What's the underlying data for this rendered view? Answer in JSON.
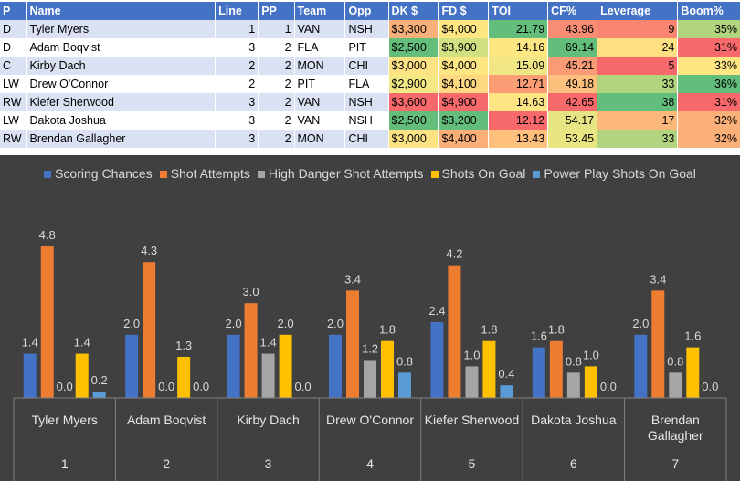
{
  "table": {
    "headers": [
      "P",
      "Name",
      "Line",
      "PP",
      "Team",
      "Opp",
      "DK $",
      "FD $",
      "TOI",
      "CF%",
      "Leverage",
      "Boom%"
    ],
    "rows": [
      {
        "pos": "D",
        "name": "Tyler Myers",
        "line": "1",
        "pp": "1",
        "team": "VAN",
        "opp": "NSH",
        "dk": "$3,300",
        "fd": "$4,000",
        "toi": "21.79",
        "cf": "43.96",
        "lev": "9",
        "boom": "35%"
      },
      {
        "pos": "D",
        "name": "Adam Boqvist",
        "line": "3",
        "pp": "2",
        "team": "FLA",
        "opp": "PIT",
        "dk": "$2,500",
        "fd": "$3,900",
        "toi": "14.16",
        "cf": "69.14",
        "lev": "24",
        "boom": "31%"
      },
      {
        "pos": "C",
        "name": "Kirby Dach",
        "line": "2",
        "pp": "2",
        "team": "MON",
        "opp": "CHI",
        "dk": "$3,000",
        "fd": "$4,000",
        "toi": "15.09",
        "cf": "45.21",
        "lev": "5",
        "boom": "33%"
      },
      {
        "pos": "LW",
        "name": "Drew O'Connor",
        "line": "2",
        "pp": "2",
        "team": "PIT",
        "opp": "FLA",
        "dk": "$2,900",
        "fd": "$4,100",
        "toi": "12.71",
        "cf": "49.18",
        "lev": "33",
        "boom": "36%"
      },
      {
        "pos": "RW",
        "name": "Kiefer Sherwood",
        "line": "3",
        "pp": "2",
        "team": "VAN",
        "opp": "NSH",
        "dk": "$3,600",
        "fd": "$4,900",
        "toi": "14.63",
        "cf": "42.65",
        "lev": "38",
        "boom": "31%"
      },
      {
        "pos": "LW",
        "name": "Dakota Joshua",
        "line": "3",
        "pp": "2",
        "team": "VAN",
        "opp": "NSH",
        "dk": "$2,500",
        "fd": "$3,200",
        "toi": "12.12",
        "cf": "54.17",
        "lev": "17",
        "boom": "32%"
      },
      {
        "pos": "RW",
        "name": "Brendan Gallagher",
        "line": "3",
        "pp": "2",
        "team": "MON",
        "opp": "CHI",
        "dk": "$3,000",
        "fd": "$4,400",
        "toi": "13.43",
        "cf": "53.45",
        "lev": "33",
        "boom": "32%"
      }
    ],
    "cell_colors": {
      "dk": [
        "#f8b07a",
        "#63be7b",
        "#fde383",
        "#f3e884",
        "#f8696b",
        "#63be7b",
        "#fde383"
      ],
      "fd": [
        "#fee683",
        "#d3e082",
        "#fee683",
        "#fed880",
        "#f8696b",
        "#63be7b",
        "#fcae79"
      ],
      "toi": [
        "#63be7b",
        "#fee783",
        "#f0e784",
        "#fb9e76",
        "#fee483",
        "#f8696b",
        "#fec07c"
      ],
      "cf": [
        "#f88d73",
        "#63be7b",
        "#f99b75",
        "#fcc07c",
        "#f8696b",
        "#e6e483",
        "#eae583"
      ],
      "lev": [
        "#f98570",
        "#fee082",
        "#f8696b",
        "#b1d47f",
        "#63be7b",
        "#fcb77a",
        "#b1d47f"
      ],
      "boom": [
        "#b1d47f",
        "#f8696b",
        "#fee683",
        "#63be7b",
        "#f8696b",
        "#fcb079",
        "#fcb079"
      ]
    }
  },
  "chart_data": {
    "type": "bar",
    "legend": [
      "Scoring Chances",
      "Shot Attempts",
      "High Danger Shot Attempts",
      "Shots On Goal",
      "Power Play Shots On Goal"
    ],
    "colors": [
      "#4472c4",
      "#ed7d31",
      "#a5a5a5",
      "#ffc000",
      "#5b9bd5"
    ],
    "categories": [
      {
        "name": "Tyler Myers",
        "index": "1"
      },
      {
        "name": "Adam Boqvist",
        "index": "2"
      },
      {
        "name": "Kirby Dach",
        "index": "3"
      },
      {
        "name": "Drew O'Connor",
        "index": "4"
      },
      {
        "name": "Kiefer Sherwood",
        "index": "5"
      },
      {
        "name": "Dakota Joshua",
        "index": "6"
      },
      {
        "name": "Brendan Gallagher",
        "index": "7"
      }
    ],
    "series": [
      {
        "name": "Scoring Chances",
        "values": [
          1.4,
          2.0,
          2.0,
          2.0,
          2.4,
          1.6,
          2.0
        ]
      },
      {
        "name": "Shot Attempts",
        "values": [
          4.8,
          4.3,
          3.0,
          3.4,
          4.2,
          1.8,
          3.4
        ]
      },
      {
        "name": "High Danger Shot Attempts",
        "values": [
          0.0,
          0.0,
          1.4,
          1.2,
          1.0,
          0.8,
          0.8
        ]
      },
      {
        "name": "Shots On Goal",
        "values": [
          1.4,
          1.3,
          2.0,
          1.8,
          1.8,
          1.0,
          1.6
        ]
      },
      {
        "name": "Power Play Shots On Goal",
        "values": [
          0.2,
          0.0,
          0.0,
          0.8,
          0.4,
          0.0,
          0.0
        ]
      }
    ],
    "ylim": [
      0,
      5.5
    ]
  }
}
